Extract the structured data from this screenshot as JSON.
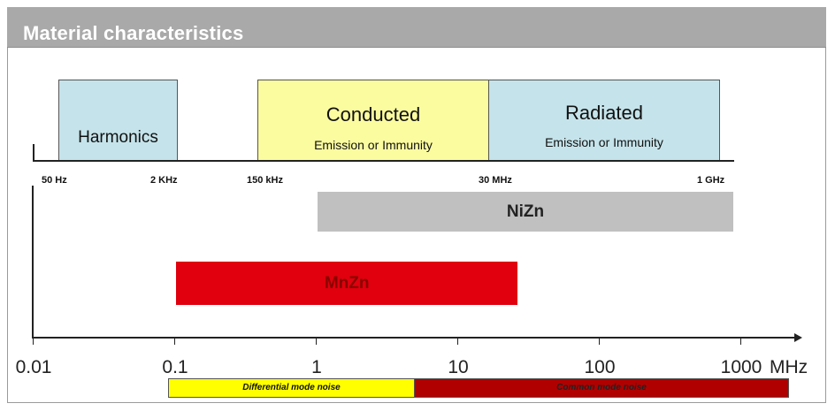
{
  "header": {
    "title": "Material characteristics"
  },
  "bands": {
    "harmonics": {
      "label": "Harmonics",
      "color": "#c5e3ea"
    },
    "conducted": {
      "label": "Conducted",
      "sub": "Emission or Immunity",
      "color": "#fbfba0"
    },
    "radiated": {
      "label": "Radiated",
      "sub": "Emission or Immunity",
      "color": "#c5e3ea"
    }
  },
  "top_scale": {
    "labels": [
      "50 Hz",
      "2 KHz",
      "150 kHz",
      "30 MHz",
      "1 GHz"
    ]
  },
  "materials": {
    "nizn": {
      "label": "NiZn",
      "color": "#c0c0c0",
      "from_mhz": 1,
      "to_mhz": 1000
    },
    "mnzn": {
      "label": "MnZn",
      "color": "#e0000e",
      "label_color": "#8a0000",
      "from_mhz": 0.1,
      "to_mhz": 30
    }
  },
  "axis": {
    "ticks": [
      "0.01",
      "0.1",
      "1",
      "10",
      "100",
      "1000"
    ],
    "unit": "MHz",
    "scale": "log"
  },
  "noise": {
    "differential": {
      "label": "Differential mode noise",
      "color": "#ffff00"
    },
    "common": {
      "label": "Common mode noise",
      "color": "#b00000"
    }
  }
}
